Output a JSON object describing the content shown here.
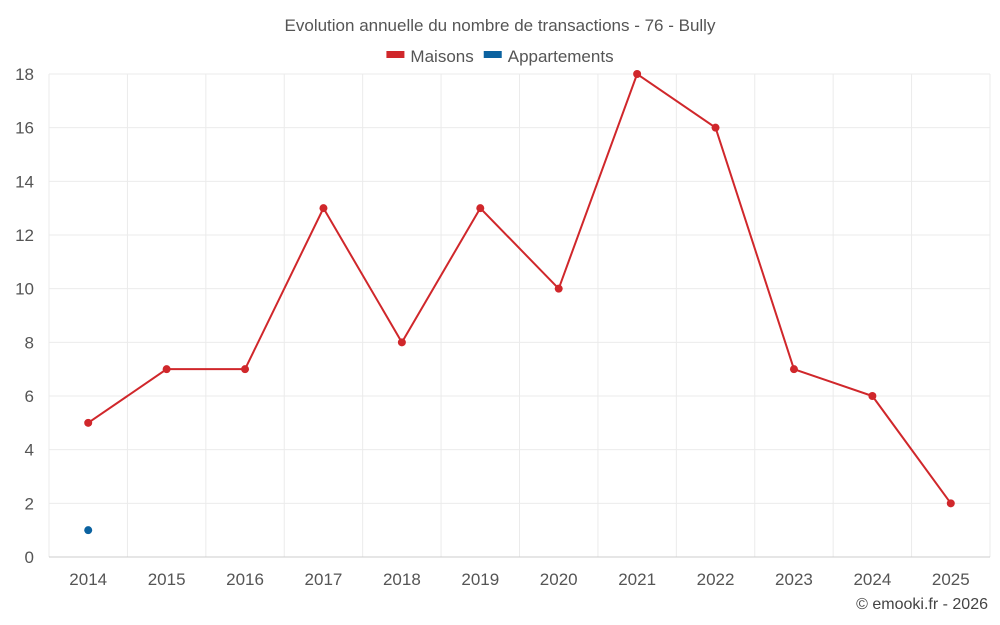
{
  "chart_data": {
    "type": "line",
    "title": "Evolution annuelle du nombre de transactions - 76 - Bully",
    "xlabel": "",
    "ylabel": "",
    "categories": [
      "2014",
      "2015",
      "2016",
      "2017",
      "2018",
      "2019",
      "2020",
      "2021",
      "2022",
      "2023",
      "2024",
      "2025"
    ],
    "ylim": [
      0,
      18
    ],
    "yticks": [
      0,
      2,
      4,
      6,
      8,
      10,
      12,
      14,
      16,
      18
    ],
    "grid": true,
    "legend_position": "top-center",
    "series": [
      {
        "name": "Maisons",
        "color": "#d0272b",
        "values": [
          5,
          7,
          7,
          13,
          8,
          13,
          10,
          18,
          16,
          7,
          6,
          2
        ]
      },
      {
        "name": "Appartements",
        "color": "#0b62a0",
        "values": [
          1,
          null,
          null,
          null,
          null,
          null,
          null,
          null,
          null,
          null,
          null,
          null
        ]
      }
    ]
  },
  "credit": "© emooki.fr - 2026"
}
